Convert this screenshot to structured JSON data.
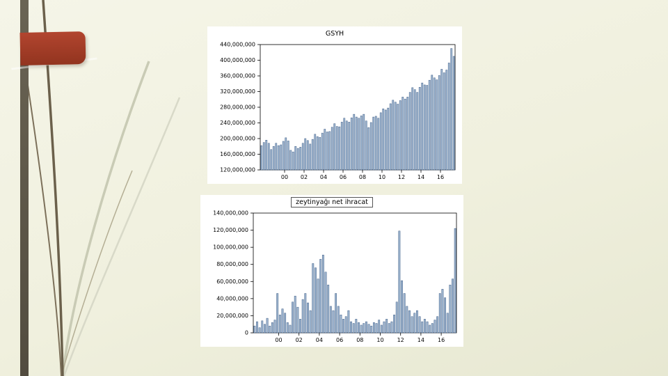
{
  "slide": {
    "background_top": "#f5f5e8",
    "background_bottom": "#e7e8d2",
    "left_bar_color": "#5d574a",
    "accent_box_color": "#a53b27"
  },
  "chart_data": [
    {
      "type": "bar",
      "title": "GSYH",
      "xlabel": "",
      "ylabel": "",
      "frequency": "quarterly",
      "x_start": "1998Q1",
      "x_end": "2017Q4",
      "unit_multiplier": 1000000,
      "ylim": [
        120,
        440
      ],
      "grid": false,
      "legend": "none",
      "bar_fill": "#9fb6d0",
      "bar_stroke": "#3d5c85",
      "yticks": [
        {
          "v": 440,
          "label": "440,000,000"
        },
        {
          "v": 400,
          "label": "400,000,000"
        },
        {
          "v": 360,
          "label": "360,000,000"
        },
        {
          "v": 320,
          "label": "320,000,000"
        },
        {
          "v": 280,
          "label": "280,000,000"
        },
        {
          "v": 240,
          "label": "240,000,000"
        },
        {
          "v": 200,
          "label": "200,000,000"
        },
        {
          "v": 160,
          "label": "160,000,000"
        },
        {
          "v": 120,
          "label": "120,000,000"
        }
      ],
      "xticks": [
        {
          "q": 8,
          "label": "00"
        },
        {
          "q": 16,
          "label": "02"
        },
        {
          "q": 24,
          "label": "04"
        },
        {
          "q": 32,
          "label": "06"
        },
        {
          "q": 40,
          "label": "08"
        },
        {
          "q": 48,
          "label": "10"
        },
        {
          "q": 56,
          "label": "12"
        },
        {
          "q": 64,
          "label": "14"
        },
        {
          "q": 72,
          "label": "16"
        }
      ],
      "values_millions": [
        182,
        190,
        196,
        188,
        172,
        180,
        188,
        182,
        184,
        193,
        202,
        194,
        170,
        166,
        180,
        175,
        178,
        188,
        200,
        195,
        186,
        198,
        211,
        205,
        203,
        214,
        224,
        217,
        218,
        229,
        238,
        231,
        230,
        242,
        252,
        245,
        242,
        253,
        262,
        255,
        252,
        258,
        262,
        245,
        228,
        241,
        255,
        257,
        252,
        266,
        276,
        273,
        278,
        289,
        298,
        293,
        288,
        297,
        306,
        301,
        306,
        318,
        330,
        325,
        318,
        331,
        342,
        337,
        336,
        349,
        362,
        355,
        350,
        361,
        377,
        368,
        375,
        393,
        430,
        410
      ]
    },
    {
      "type": "bar",
      "title": "zeytinyağı net ihracat",
      "xlabel": "",
      "ylabel": "",
      "frequency": "quarterly",
      "x_start": "1998Q1",
      "x_end": "2017Q4",
      "unit_multiplier": 1000000,
      "ylim": [
        0,
        140
      ],
      "grid": false,
      "legend": "none",
      "bar_fill": "#9fb6d0",
      "bar_stroke": "#3d5c85",
      "yticks": [
        {
          "v": 140,
          "label": "140,000,000"
        },
        {
          "v": 120,
          "label": "120,000,000"
        },
        {
          "v": 100,
          "label": "100,000,000"
        },
        {
          "v": 80,
          "label": "80,000,000"
        },
        {
          "v": 60,
          "label": "60,000,000"
        },
        {
          "v": 40,
          "label": "40,000,000"
        },
        {
          "v": 20,
          "label": "20,000,000"
        },
        {
          "v": 0,
          "label": "0"
        }
      ],
      "xticks": [
        {
          "q": 8,
          "label": "00"
        },
        {
          "q": 16,
          "label": "02"
        },
        {
          "q": 24,
          "label": "04"
        },
        {
          "q": 32,
          "label": "06"
        },
        {
          "q": 40,
          "label": "08"
        },
        {
          "q": 48,
          "label": "10"
        },
        {
          "q": 56,
          "label": "12"
        },
        {
          "q": 64,
          "label": "14"
        },
        {
          "q": 72,
          "label": "16"
        }
      ],
      "values_millions": [
        8,
        13,
        6,
        14,
        10,
        17,
        8,
        12,
        15,
        46,
        21,
        28,
        23,
        12,
        9,
        36,
        43,
        30,
        16,
        39,
        46,
        35,
        26,
        81,
        76,
        63,
        86,
        91,
        71,
        56,
        31,
        26,
        46,
        31,
        21,
        16,
        19,
        26,
        13,
        11,
        16,
        12,
        9,
        11,
        13,
        10,
        8,
        12,
        11,
        15,
        9,
        13,
        16,
        11,
        13,
        21,
        36,
        119,
        61,
        46,
        31,
        26,
        19,
        23,
        26,
        19,
        13,
        16,
        13,
        9,
        11,
        15,
        19,
        46,
        51,
        41,
        23,
        56,
        63,
        122
      ]
    }
  ]
}
